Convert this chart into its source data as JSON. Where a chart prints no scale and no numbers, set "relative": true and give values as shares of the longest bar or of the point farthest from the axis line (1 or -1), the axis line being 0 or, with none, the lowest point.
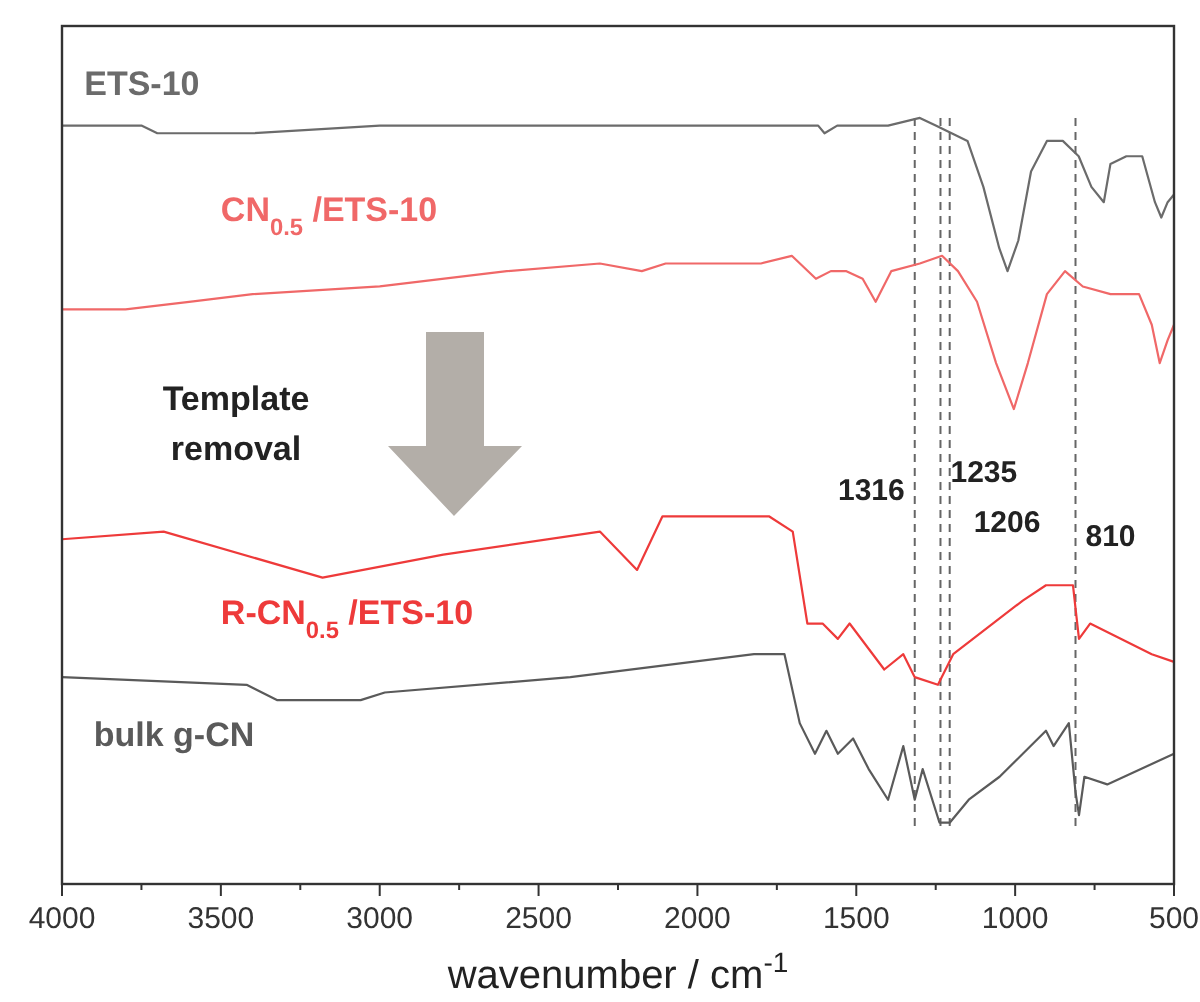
{
  "chart_data": {
    "type": "line",
    "relative": true,
    "xlabel": "wavenumber / cm$^{-1}$",
    "xlim": [
      4000,
      500
    ],
    "xticks": [
      4000,
      {
        "value": 3750,
        "label": null
      },
      3500,
      {
        "value": 3250,
        "label": null
      },
      3000,
      {
        "value": 2750,
        "label": null
      },
      2500,
      {
        "value": 2250,
        "label": null
      },
      2000,
      {
        "value": 1750,
        "label": null
      },
      1500,
      {
        "value": 1250,
        "label": null
      },
      1000,
      {
        "value": 750,
        "label": null
      },
      500
    ],
    "tick_labels": "x",
    "grid": false,
    "line_style": "solid",
    "marker": "none",
    "series": [
      {
        "name": "ETS-10",
        "color": "#6b6b6b",
        "x": [
          4000,
          3750,
          3700,
          3400,
          3000,
          2500,
          2000,
          1620,
          1600,
          1560,
          1400,
          1300,
          1250,
          1200,
          1150,
          1100,
          1050,
          1024,
          990,
          950,
          900,
          850,
          800,
          760,
          721,
          700,
          650,
          600,
          560,
          540,
          520,
          500
        ],
        "values": [
          0.99,
          0.99,
          0.98,
          0.98,
          0.99,
          0.99,
          0.99,
          0.99,
          0.98,
          0.99,
          0.99,
          1,
          0.99,
          0.98,
          0.97,
          0.91,
          0.83,
          0.8,
          0.84,
          0.93,
          0.97,
          0.97,
          0.95,
          0.91,
          0.89,
          0.94,
          0.95,
          0.95,
          0.89,
          0.87,
          0.89,
          0.9
        ]
      },
      {
        "name": "CN$_{0.5}$ /ETS-10",
        "color": "#f06868",
        "x": [
          4000,
          3800,
          3600,
          3400,
          3000,
          2600,
          2307,
          2175,
          2100,
          1800,
          1703,
          1627,
          1580,
          1531,
          1480,
          1439,
          1390,
          1300,
          1230,
          1180,
          1120,
          1060,
          1004,
          960,
          900,
          843,
          787,
          700,
          610,
          570,
          545,
          520,
          500
        ],
        "values": [
          0.75,
          0.75,
          0.76,
          0.77,
          0.78,
          0.8,
          0.81,
          0.8,
          0.81,
          0.81,
          0.82,
          0.79,
          0.8,
          0.8,
          0.79,
          0.76,
          0.8,
          0.81,
          0.82,
          0.8,
          0.76,
          0.68,
          0.62,
          0.68,
          0.77,
          0.8,
          0.78,
          0.77,
          0.77,
          0.73,
          0.68,
          0.71,
          0.73
        ]
      },
      {
        "name": "R-CN$_{0.5}$ /ETS-10",
        "color": "#ee3a3a",
        "x": [
          4000,
          3680,
          3180,
          2800,
          2307,
          2190,
          2110,
          1775,
          1700,
          1654,
          1606,
          1558,
          1521,
          1412,
          1352,
          1316,
          1243,
          1195,
          976,
          903,
          818,
          810,
          799,
          764,
          570,
          500
        ],
        "values": [
          0.45,
          0.46,
          0.4,
          0.43,
          0.46,
          0.41,
          0.48,
          0.48,
          0.46,
          0.34,
          0.34,
          0.32,
          0.34,
          0.28,
          0.3,
          0.27,
          0.26,
          0.3,
          0.37,
          0.39,
          0.39,
          0.36,
          0.32,
          0.34,
          0.3,
          0.29
        ]
      },
      {
        "name": "bulk g-CN",
        "color": "#5a5a5a",
        "x": [
          4000,
          3419,
          3322,
          3180,
          3060,
          2984,
          2400,
          1822,
          1726,
          1678,
          1630,
          1594,
          1558,
          1510,
          1461,
          1400,
          1352,
          1316,
          1291,
          1238,
          1206,
          1146,
          1049,
          903,
          879,
          831,
          810,
          799,
          782,
          710,
          500
        ],
        "values": [
          0.27,
          0.26,
          0.24,
          0.24,
          0.24,
          0.25,
          0.27,
          0.3,
          0.3,
          0.21,
          0.17,
          0.2,
          0.17,
          0.19,
          0.15,
          0.11,
          0.18,
          0.11,
          0.15,
          0.08,
          0.08,
          0.11,
          0.14,
          0.2,
          0.18,
          0.21,
          0.12,
          0.09,
          0.14,
          0.13,
          0.17
        ]
      }
    ],
    "ref_lines": [
      {
        "axis": "x",
        "value": 1316,
        "label": "1316",
        "color": "#666666",
        "line_style": "dashed"
      },
      {
        "axis": "x",
        "value": 1235,
        "label": "1235",
        "color": "#666666",
        "line_style": "dashed"
      },
      {
        "axis": "x",
        "value": 1206,
        "label": "1206",
        "color": "#666666",
        "line_style": "dashed"
      },
      {
        "axis": "x",
        "value": 810,
        "label": "810",
        "color": "#666666",
        "line_style": "dashed"
      }
    ],
    "annotations": [
      "Template removal"
    ]
  }
}
